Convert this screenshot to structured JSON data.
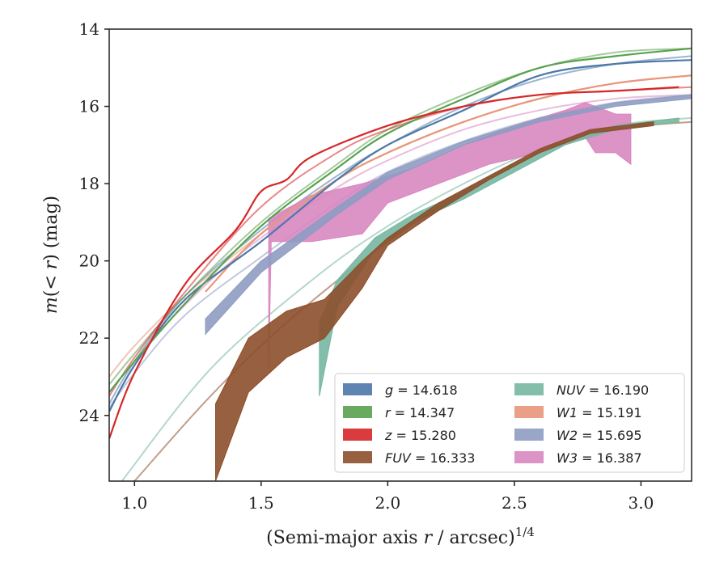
{
  "chart_data": {
    "type": "line",
    "xlabel": "(Semi-major axis r / arcsec)^1/4",
    "ylabel": "m(< r) (mag)",
    "xlim": [
      0.9,
      3.2
    ],
    "ylim": [
      25.7,
      14.0
    ],
    "y_inverted": true,
    "x_ticks": [
      1.0,
      1.5,
      2.0,
      2.5,
      3.0
    ],
    "x_tick_labels": [
      "1.0",
      "1.5",
      "2.0",
      "2.5",
      "3.0"
    ],
    "y_ticks": [
      14,
      16,
      18,
      20,
      22,
      24
    ],
    "y_tick_labels": [
      "14",
      "16",
      "18",
      "20",
      "22",
      "24"
    ],
    "grid": false,
    "legend_position": "lower-right",
    "series": [
      {
        "key": "g",
        "band": "g",
        "total": "14.618",
        "color": "#4c78a8",
        "curve_of_growth": [
          [
            0.9,
            23.9
          ],
          [
            1.0,
            22.7
          ],
          [
            1.2,
            21.0
          ],
          [
            1.5,
            19.5
          ],
          [
            1.8,
            17.9
          ],
          [
            2.0,
            17.0
          ],
          [
            2.3,
            16.1
          ],
          [
            2.6,
            15.2
          ],
          [
            2.9,
            14.9
          ],
          [
            3.2,
            14.8
          ]
        ],
        "model": [
          [
            0.9,
            23.7
          ],
          [
            1.0,
            22.6
          ],
          [
            1.2,
            20.9
          ],
          [
            1.5,
            19.2
          ],
          [
            1.8,
            17.8
          ],
          [
            2.0,
            17.0
          ],
          [
            2.3,
            16.0
          ],
          [
            2.6,
            15.3
          ],
          [
            2.9,
            14.9
          ],
          [
            3.2,
            14.7
          ]
        ]
      },
      {
        "key": "r",
        "band": "r",
        "total": "14.347",
        "color": "#59a14f",
        "curve_of_growth": [
          [
            0.9,
            23.4
          ],
          [
            1.0,
            22.6
          ],
          [
            1.2,
            21.1
          ],
          [
            1.5,
            19.1
          ],
          [
            1.8,
            17.6
          ],
          [
            2.0,
            16.7
          ],
          [
            2.3,
            15.8
          ],
          [
            2.6,
            15.0
          ],
          [
            2.9,
            14.7
          ],
          [
            3.2,
            14.5
          ]
        ],
        "model": [
          [
            0.9,
            23.2
          ],
          [
            1.0,
            22.4
          ],
          [
            1.2,
            20.9
          ],
          [
            1.5,
            19.0
          ],
          [
            1.8,
            17.5
          ],
          [
            2.0,
            16.6
          ],
          [
            2.3,
            15.7
          ],
          [
            2.6,
            15.0
          ],
          [
            2.9,
            14.6
          ],
          [
            3.2,
            14.5
          ]
        ]
      },
      {
        "key": "z",
        "band": "z",
        "total": "15.280",
        "color": "#d62728",
        "curve_of_growth": [
          [
            0.9,
            24.6
          ],
          [
            1.0,
            22.9
          ],
          [
            1.2,
            20.6
          ],
          [
            1.4,
            19.2
          ],
          [
            1.5,
            18.2
          ],
          [
            1.6,
            17.9
          ],
          [
            1.7,
            17.3
          ],
          [
            2.0,
            16.5
          ],
          [
            2.3,
            16.0
          ],
          [
            2.6,
            15.7
          ],
          [
            2.9,
            15.6
          ],
          [
            3.15,
            15.5
          ]
        ],
        "model": [
          [
            0.9,
            23.5
          ],
          [
            1.0,
            22.5
          ],
          [
            1.2,
            20.8
          ],
          [
            1.5,
            18.6
          ],
          [
            1.8,
            17.2
          ],
          [
            2.0,
            16.6
          ],
          [
            2.3,
            16.0
          ],
          [
            2.6,
            15.7
          ],
          [
            2.9,
            15.6
          ],
          [
            3.2,
            15.5
          ]
        ]
      },
      {
        "key": "FUV",
        "band": "FUV",
        "total": "16.333",
        "color": "#8c4f2b",
        "band_upper": [
          [
            1.32,
            23.7
          ],
          [
            1.45,
            22.0
          ],
          [
            1.6,
            21.3
          ],
          [
            1.75,
            21.0
          ],
          [
            1.9,
            20.0
          ],
          [
            2.0,
            19.4
          ],
          [
            2.2,
            18.5
          ],
          [
            2.4,
            17.8
          ],
          [
            2.6,
            17.1
          ],
          [
            2.8,
            16.6
          ],
          [
            3.05,
            16.4
          ]
        ],
        "band_lower": [
          [
            1.32,
            25.7
          ],
          [
            1.45,
            23.4
          ],
          [
            1.6,
            22.5
          ],
          [
            1.75,
            22.0
          ],
          [
            1.9,
            20.7
          ],
          [
            2.0,
            19.6
          ],
          [
            2.2,
            18.7
          ],
          [
            2.4,
            17.9
          ],
          [
            2.6,
            17.2
          ],
          [
            2.8,
            16.7
          ],
          [
            3.05,
            16.5
          ]
        ],
        "model": [
          [
            1.0,
            25.7
          ],
          [
            1.3,
            23.5
          ],
          [
            1.6,
            21.6
          ],
          [
            2.0,
            19.5
          ],
          [
            2.3,
            18.2
          ],
          [
            2.6,
            17.2
          ],
          [
            2.9,
            16.6
          ],
          [
            3.2,
            16.4
          ]
        ]
      },
      {
        "key": "NUV",
        "band": "NUV",
        "total": "16.190",
        "color": "#76b7a2",
        "band_upper": [
          [
            1.73,
            21.6
          ],
          [
            1.8,
            20.5
          ],
          [
            1.95,
            19.4
          ],
          [
            2.1,
            18.8
          ],
          [
            2.3,
            18.2
          ],
          [
            2.5,
            17.5
          ],
          [
            2.7,
            16.9
          ],
          [
            2.9,
            16.5
          ],
          [
            3.15,
            16.3
          ]
        ],
        "band_lower": [
          [
            1.73,
            23.5
          ],
          [
            1.8,
            21.2
          ],
          [
            1.95,
            19.7
          ],
          [
            2.1,
            19.0
          ],
          [
            2.3,
            18.4
          ],
          [
            2.5,
            17.7
          ],
          [
            2.7,
            17.0
          ],
          [
            2.9,
            16.6
          ],
          [
            3.15,
            16.4
          ]
        ],
        "model": [
          [
            0.95,
            25.7
          ],
          [
            1.3,
            22.8
          ],
          [
            1.7,
            20.5
          ],
          [
            2.0,
            19.1
          ],
          [
            2.3,
            18.0
          ],
          [
            2.6,
            17.1
          ],
          [
            2.9,
            16.5
          ],
          [
            3.2,
            16.3
          ]
        ]
      },
      {
        "key": "W1",
        "band": "W1",
        "total": "15.191",
        "color": "#e8967a",
        "curve_of_growth": [
          [
            1.28,
            20.8
          ],
          [
            1.5,
            19.3
          ],
          [
            1.8,
            17.9
          ],
          [
            2.0,
            17.2
          ],
          [
            2.3,
            16.4
          ],
          [
            2.6,
            15.8
          ],
          [
            2.9,
            15.4
          ],
          [
            3.2,
            15.2
          ]
        ],
        "model": [
          [
            0.9,
            23.0
          ],
          [
            1.0,
            22.2
          ],
          [
            1.2,
            20.9
          ],
          [
            1.5,
            19.3
          ],
          [
            1.8,
            17.9
          ],
          [
            2.0,
            17.2
          ],
          [
            2.3,
            16.4
          ],
          [
            2.6,
            15.8
          ],
          [
            2.9,
            15.4
          ],
          [
            3.2,
            15.2
          ]
        ]
      },
      {
        "key": "W2",
        "band": "W2",
        "total": "15.695",
        "color": "#8e9cc2",
        "band_upper": [
          [
            1.28,
            21.5
          ],
          [
            1.5,
            20.0
          ],
          [
            1.8,
            18.6
          ],
          [
            2.0,
            17.7
          ],
          [
            2.3,
            16.9
          ],
          [
            2.6,
            16.3
          ],
          [
            2.9,
            15.9
          ],
          [
            3.2,
            15.7
          ]
        ],
        "band_lower": [
          [
            1.28,
            21.9
          ],
          [
            1.5,
            20.3
          ],
          [
            1.8,
            18.8
          ],
          [
            2.0,
            17.9
          ],
          [
            2.3,
            17.0
          ],
          [
            2.6,
            16.4
          ],
          [
            2.9,
            16.0
          ],
          [
            3.2,
            15.8
          ]
        ],
        "model": [
          [
            0.9,
            23.8
          ],
          [
            1.0,
            22.9
          ],
          [
            1.2,
            21.4
          ],
          [
            1.5,
            19.9
          ],
          [
            1.8,
            18.5
          ],
          [
            2.0,
            17.7
          ],
          [
            2.3,
            16.9
          ],
          [
            2.6,
            16.3
          ],
          [
            2.9,
            15.9
          ],
          [
            3.2,
            15.7
          ]
        ]
      },
      {
        "key": "W3",
        "band": "W3",
        "total": "16.387",
        "color": "#d887c0",
        "band_upper": [
          [
            1.53,
            18.9
          ],
          [
            1.7,
            18.3
          ],
          [
            1.9,
            18.0
          ],
          [
            2.1,
            17.6
          ],
          [
            2.3,
            17.0
          ],
          [
            2.5,
            16.5
          ],
          [
            2.7,
            16.1
          ],
          [
            2.78,
            15.9
          ],
          [
            2.9,
            16.2
          ],
          [
            2.96,
            16.2
          ]
        ],
        "band_lower": [
          [
            1.53,
            22.8
          ],
          [
            1.54,
            19.5
          ],
          [
            1.7,
            19.5
          ],
          [
            1.9,
            19.3
          ],
          [
            2.0,
            18.5
          ],
          [
            2.2,
            18.0
          ],
          [
            2.4,
            17.5
          ],
          [
            2.6,
            17.2
          ],
          [
            2.78,
            16.8
          ],
          [
            2.82,
            17.2
          ],
          [
            2.9,
            17.2
          ],
          [
            2.96,
            17.5
          ]
        ],
        "model": [
          [
            1.1,
            21.8
          ],
          [
            1.3,
            20.5
          ],
          [
            1.5,
            19.4
          ],
          [
            1.8,
            18.1
          ],
          [
            2.0,
            17.4
          ],
          [
            2.3,
            16.6
          ],
          [
            2.6,
            16.1
          ],
          [
            2.9,
            15.8
          ],
          [
            3.2,
            15.7
          ]
        ]
      }
    ],
    "legend": {
      "col1": [
        {
          "key": "g",
          "band": "g",
          "value": "14.618"
        },
        {
          "key": "r",
          "band": "r",
          "value": "14.347"
        },
        {
          "key": "z",
          "band": "z",
          "value": "15.280"
        },
        {
          "key": "FUV",
          "band": "FUV",
          "value": "16.333"
        }
      ],
      "col2": [
        {
          "key": "NUV",
          "band": "NUV",
          "value": "16.190"
        },
        {
          "key": "W1",
          "band": "W1",
          "value": "15.191"
        },
        {
          "key": "W2",
          "band": "W2",
          "value": "15.695"
        },
        {
          "key": "W3",
          "band": "W3",
          "value": "16.387"
        }
      ]
    }
  }
}
